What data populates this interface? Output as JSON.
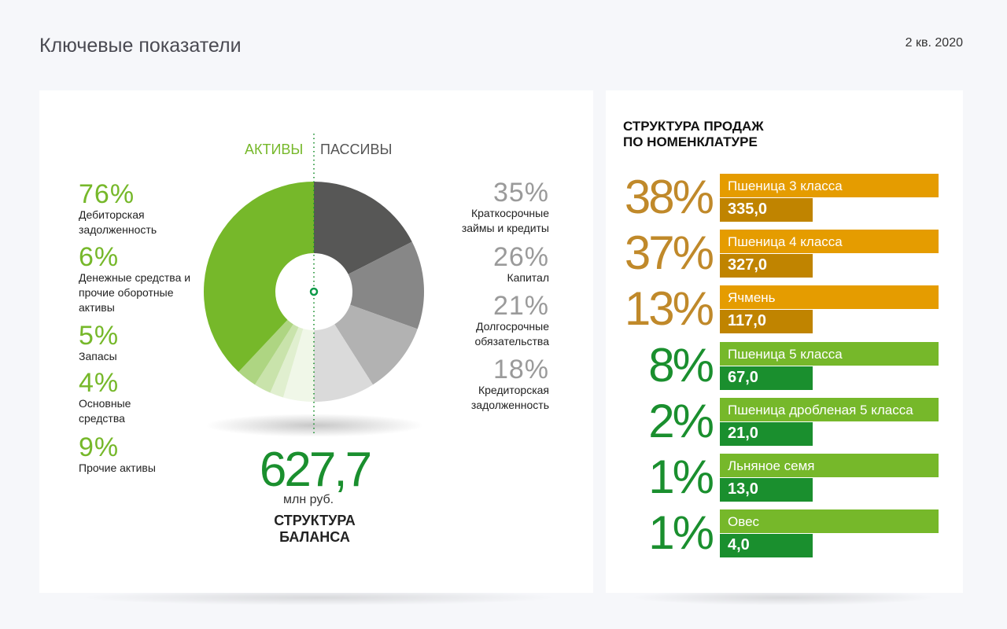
{
  "header": {
    "title": "Ключевые показатели",
    "period": "2 кв. 2020"
  },
  "colors": {
    "green": "#76b82a",
    "dark_green": "#1a8f2e",
    "orange": "#e59c00",
    "dark_orange": "#c08400",
    "gold_text": "#c0892a",
    "gray_text": "#9a9a9a"
  },
  "chart_data": [
    {
      "type": "pie",
      "title": "СТРУКТУРА БАЛАНСА",
      "total": "627,7",
      "unit": "млн руб.",
      "assets": {
        "label": "АКТИВЫ",
        "items": [
          {
            "pct": "76%",
            "value": 76,
            "label": "Дебиторская задолженность",
            "color": "#76b82a"
          },
          {
            "pct": "6%",
            "value": 6,
            "label": "Денежные средства и прочие оборотные активы",
            "color": "#aed582"
          },
          {
            "pct": "5%",
            "value": 5,
            "label": "Запасы",
            "color": "#c9e3ab"
          },
          {
            "pct": "4%",
            "value": 4,
            "label": "Основные средства",
            "color": "#e0efcf"
          },
          {
            "pct": "9%",
            "value": 9,
            "label": "Прочие активы",
            "color": "#f0f7e8"
          }
        ]
      },
      "liabilities": {
        "label": "ПАССИВЫ",
        "items": [
          {
            "pct": "35%",
            "value": 35,
            "label": "Краткосрочные займы и кредиты",
            "color": "#575756"
          },
          {
            "pct": "26%",
            "value": 26,
            "label": "Капитал",
            "color": "#878787"
          },
          {
            "pct": "21%",
            "value": 21,
            "label": "Долгосрочные обязательства",
            "color": "#b2b2b2"
          },
          {
            "pct": "18%",
            "value": 18,
            "label": "Кредиторская задолженность",
            "color": "#dadada"
          }
        ]
      }
    },
    {
      "type": "bar",
      "title": "СТРУКТУРА ПРОДАЖ ПО НОМЕНКЛАТУРЕ",
      "items": [
        {
          "pct": "38%",
          "label": "Пшеница 3 класса",
          "value": "335,0",
          "group": "orange"
        },
        {
          "pct": "37%",
          "label": "Пшеница 4 класса",
          "value": "327,0",
          "group": "orange"
        },
        {
          "pct": "13%",
          "label": "Ячмень",
          "value": "117,0",
          "group": "orange"
        },
        {
          "pct": "8%",
          "label": "Пшеница 5 класса",
          "value": "67,0",
          "group": "green"
        },
        {
          "pct": "2%",
          "label": "Пшеница дробленая 5 класса",
          "value": "21,0",
          "group": "green"
        },
        {
          "pct": "1%",
          "label": "Льняное семя",
          "value": "13,0",
          "group": "green"
        },
        {
          "pct": "1%",
          "label": "Овес",
          "value": "4,0",
          "group": "green"
        }
      ]
    }
  ],
  "sales_title_lines": [
    "СТРУКТУРА ПРОДАЖ",
    "ПО НОМЕНКЛАТУРЕ"
  ],
  "balance_title_lines": [
    "СТРУКТУРА",
    "БАЛАНСА"
  ]
}
